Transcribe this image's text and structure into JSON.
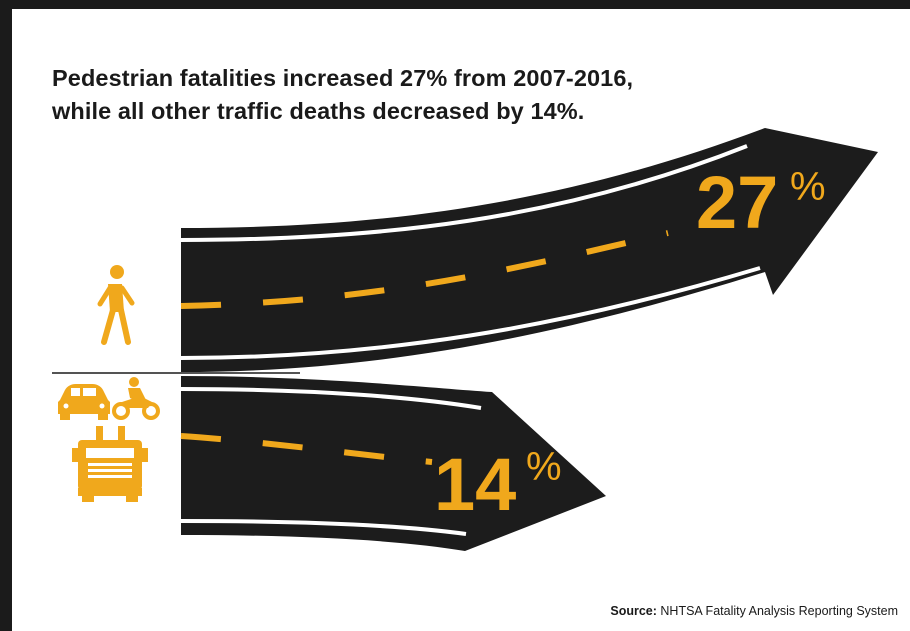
{
  "headline": {
    "line1": "Pedestrian fatalities increased 27% from 2007-2016,",
    "line2": "while all other traffic deaths decreased by 14%."
  },
  "pedestrian_arrow": {
    "value": "27",
    "unit": "%"
  },
  "other_traffic_arrow": {
    "value": "14",
    "unit": "%"
  },
  "icons": {
    "pedestrian": "walking-person-icon",
    "car": "car-icon",
    "motorcycle": "motorcycle-icon",
    "truck": "truck-icon"
  },
  "source": {
    "label": "Source:",
    "text": "NHTSA Fatality Analysis Reporting System"
  },
  "colors": {
    "road": "#1c1c1c",
    "accent": "#f0a81c",
    "lane_edge": "#ffffff",
    "frame": "#1b1b1b"
  }
}
